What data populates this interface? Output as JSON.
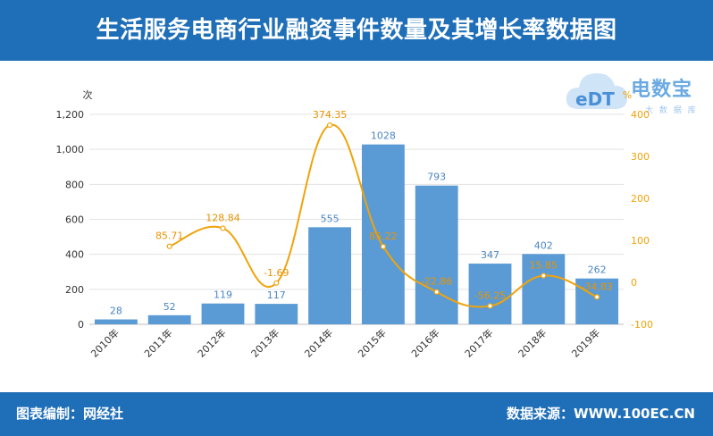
{
  "header": {
    "title": "生活服务电商行业融资事件数量及其增长率数据图"
  },
  "footer": {
    "source_left": "图表编制：网经社",
    "source_right": "数据来源：WWW.100EC.CN"
  },
  "logo": {
    "name": "电数宝",
    "sub": "大 数 据 库",
    "mark": "eDT"
  },
  "chart_data": {
    "type": "bar",
    "categories": [
      "2010年",
      "2011年",
      "2012年",
      "2013年",
      "2014年",
      "2015年",
      "2016年",
      "2017年",
      "2018年",
      "2019年"
    ],
    "series": [
      {
        "values": [
          28,
          52,
          119,
          117,
          555,
          1028,
          793,
          347,
          402,
          262
        ],
        "color": "#5b9bd5",
        "axis": "left"
      },
      {
        "values": [
          null,
          85.71,
          128.84,
          -1.69,
          374.35,
          85.22,
          -22.86,
          -56.25,
          15.85,
          -34.83
        ],
        "color": "#f0a30a",
        "axis": "right"
      }
    ],
    "left_axis": {
      "unit": "次",
      "ylim": [
        0,
        1200
      ],
      "ticks": [
        0,
        200,
        400,
        600,
        800,
        1000,
        1200
      ],
      "tick_labels": [
        "0",
        "200",
        "400",
        "600",
        "800",
        "1,000",
        "1,200"
      ]
    },
    "right_axis": {
      "unit": "%",
      "ylim": [
        -100,
        400
      ],
      "ticks": [
        -100,
        0,
        100,
        200,
        300,
        400
      ],
      "tick_labels": [
        "-100",
        "0",
        "100",
        "200",
        "300",
        "400"
      ]
    },
    "bar_labels": [
      "28",
      "52",
      "119",
      "117",
      "555",
      "1028",
      "793",
      "347",
      "402",
      "262"
    ],
    "line_labels": [
      "",
      "85.71",
      "128.84",
      "-1.69",
      "374.35",
      "85.22",
      "-22.86",
      "-56.25",
      "15.85",
      "-34.83"
    ],
    "grid": true
  }
}
